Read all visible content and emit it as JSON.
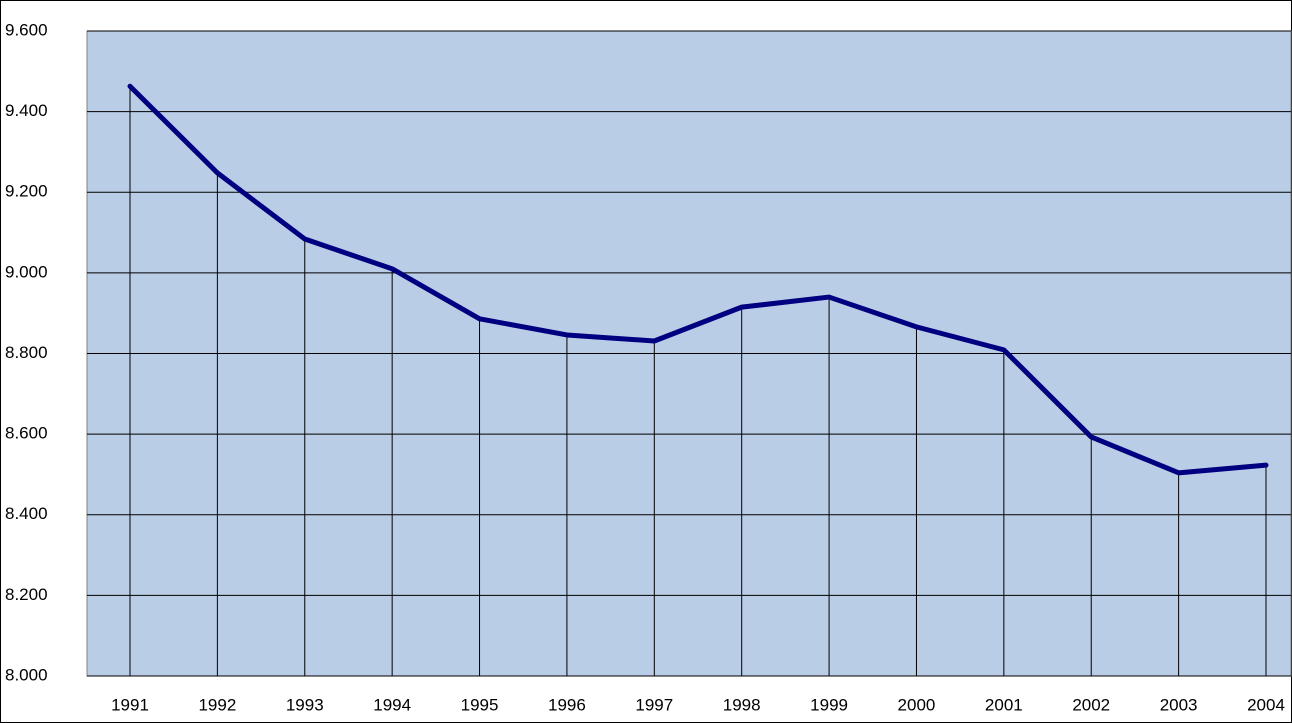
{
  "chart_data": {
    "type": "line",
    "categories": [
      "1991",
      "1992",
      "1993",
      "1994",
      "1995",
      "1996",
      "1997",
      "1998",
      "1999",
      "2000",
      "2001",
      "2002",
      "2003",
      "2004"
    ],
    "series": [
      {
        "color": "#000080",
        "values": [
          9463,
          9248,
          9084,
          9010,
          8886,
          8846,
          8831,
          8915,
          8940,
          8866,
          8809,
          8593,
          8504,
          8523
        ]
      }
    ],
    "ylim": [
      8000,
      9600
    ],
    "yticks": [
      {
        "value": 8000,
        "label": "8.000"
      },
      {
        "value": 8200,
        "label": "8.200"
      },
      {
        "value": 8400,
        "label": "8.400"
      },
      {
        "value": 8600,
        "label": "8.600"
      },
      {
        "value": 8800,
        "label": "8.800"
      },
      {
        "value": 9000,
        "label": "9.000"
      },
      {
        "value": 9200,
        "label": "9.200"
      },
      {
        "value": 9400,
        "label": "9.400"
      },
      {
        "value": 9600,
        "label": "9.600"
      }
    ],
    "grid": true,
    "drop_lines": true,
    "plot_background": "#bacde6"
  }
}
